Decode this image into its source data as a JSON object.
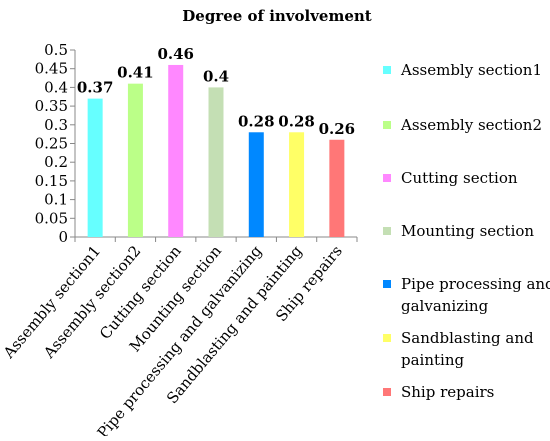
{
  "chart_data": {
    "type": "bar",
    "title": "Degree of involvement",
    "xlabel": "",
    "ylabel": "",
    "ylim": [
      0,
      0.5
    ],
    "yticks": [
      "0",
      "0.05",
      "0.1",
      "0.15",
      "0.2",
      "0.25",
      "0.3",
      "0.35",
      "0.4",
      "0.45",
      "0.5"
    ],
    "grid": false,
    "legend_position": "right",
    "categories": [
      "Assembly section1",
      "Assembly section2",
      "Cutting section",
      "Mounting section",
      "Pipe processing and galvanizing",
      "Sandblasting and painting",
      "Ship repairs"
    ],
    "values": [
      0.37,
      0.41,
      0.46,
      0.4,
      0.28,
      0.28,
      0.26
    ],
    "data_labels": [
      "0.37",
      "0.41",
      "0.46",
      "0.4",
      "0.28",
      "0.28",
      "0.26"
    ],
    "colors": [
      "#66FFFF",
      "#BBFF88",
      "#FF88FF",
      "#C4DFB4",
      "#0088FF",
      "#FFFF66",
      "#FF7777"
    ],
    "legend": [
      [
        "Assembly section1"
      ],
      [
        "Assembly section2"
      ],
      [
        "Cutting section"
      ],
      [
        "Mounting section"
      ],
      [
        "Pipe processing and",
        "galvanizing"
      ],
      [
        "Sandblasting and",
        "painting"
      ],
      [
        "Ship repairs"
      ]
    ]
  }
}
